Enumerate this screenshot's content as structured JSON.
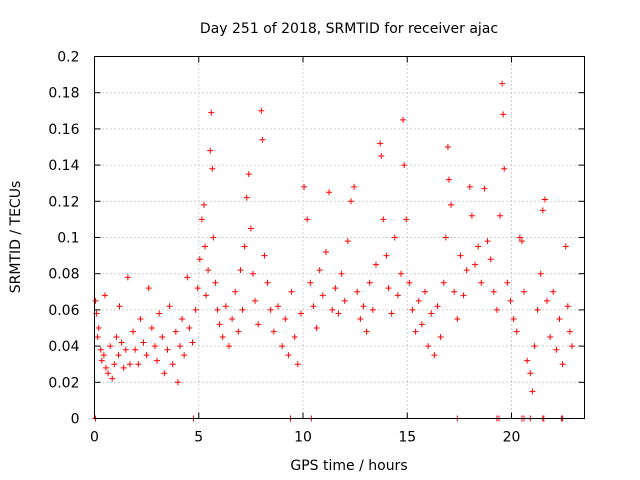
{
  "chart_data": {
    "type": "scatter",
    "title": "Day 251 of 2018, SRMTID for receiver ajac",
    "xlabel": "GPS time / hours",
    "ylabel": "SRMTID / TECUs",
    "xlim": [
      0,
      23.5
    ],
    "ylim": [
      0,
      0.2
    ],
    "x_ticks": [
      0,
      5,
      10,
      15,
      20
    ],
    "y_ticks": [
      0,
      0.02,
      0.04,
      0.06,
      0.08,
      0.1,
      0.12,
      0.14,
      0.16,
      0.18,
      0.2
    ],
    "x_tick_labels": [
      "0",
      "5",
      "10",
      "15",
      "20"
    ],
    "y_tick_labels": [
      "0",
      "0.02",
      "0.04",
      "0.06",
      "0.08",
      "0.1",
      "0.12",
      "0.14",
      "0.16",
      "0.18",
      "0.2"
    ],
    "grid": true,
    "legend": "none",
    "marker": "plus",
    "color": "#ff0000",
    "series": [
      {
        "points": [
          [
            0.05,
            0.065
          ],
          [
            0.1,
            0.058
          ],
          [
            0.15,
            0.045
          ],
          [
            0.2,
            0.05
          ],
          [
            0.3,
            0.038
          ],
          [
            0.35,
            0.032
          ],
          [
            0.45,
            0.035
          ],
          [
            0.5,
            0.068
          ],
          [
            0.55,
            0.028
          ],
          [
            0.65,
            0.025
          ],
          [
            0.75,
            0.04
          ],
          [
            0.85,
            0.022
          ],
          [
            0.95,
            0.03
          ],
          [
            1.05,
            0.045
          ],
          [
            1.15,
            0.035
          ],
          [
            1.2,
            0.062
          ],
          [
            1.3,
            0.042
          ],
          [
            1.4,
            0.028
          ],
          [
            1.5,
            0.038
          ],
          [
            1.6,
            0.078
          ],
          [
            1.7,
            0.03
          ],
          [
            1.85,
            0.048
          ],
          [
            1.95,
            0.038
          ],
          [
            2.1,
            0.03
          ],
          [
            2.2,
            0.055
          ],
          [
            2.35,
            0.042
          ],
          [
            2.5,
            0.035
          ],
          [
            2.6,
            0.072
          ],
          [
            2.75,
            0.05
          ],
          [
            2.9,
            0.04
          ],
          [
            3.0,
            0.032
          ],
          [
            3.1,
            0.058
          ],
          [
            3.25,
            0.045
          ],
          [
            3.35,
            0.025
          ],
          [
            3.5,
            0.038
          ],
          [
            3.6,
            0.062
          ],
          [
            3.75,
            0.03
          ],
          [
            3.9,
            0.048
          ],
          [
            4.0,
            0.02
          ],
          [
            4.1,
            0.04
          ],
          [
            4.2,
            0.055
          ],
          [
            4.3,
            0.035
          ],
          [
            4.45,
            0.078
          ],
          [
            4.55,
            0.05
          ],
          [
            4.7,
            0.042
          ],
          [
            4.85,
            0.06
          ],
          [
            4.95,
            0.072
          ],
          [
            5.05,
            0.088
          ],
          [
            5.15,
            0.11
          ],
          [
            5.25,
            0.118
          ],
          [
            5.3,
            0.095
          ],
          [
            5.35,
            0.068
          ],
          [
            5.45,
            0.082
          ],
          [
            5.55,
            0.148
          ],
          [
            5.6,
            0.169
          ],
          [
            5.65,
            0.138
          ],
          [
            5.7,
            0.1
          ],
          [
            5.8,
            0.075
          ],
          [
            5.9,
            0.06
          ],
          [
            6.0,
            0.052
          ],
          [
            6.15,
            0.045
          ],
          [
            6.3,
            0.062
          ],
          [
            6.45,
            0.04
          ],
          [
            6.6,
            0.055
          ],
          [
            6.75,
            0.07
          ],
          [
            6.9,
            0.048
          ],
          [
            7.0,
            0.082
          ],
          [
            7.1,
            0.06
          ],
          [
            7.2,
            0.095
          ],
          [
            7.3,
            0.122
          ],
          [
            7.4,
            0.135
          ],
          [
            7.5,
            0.105
          ],
          [
            7.6,
            0.08
          ],
          [
            7.7,
            0.065
          ],
          [
            7.85,
            0.052
          ],
          [
            8.0,
            0.17
          ],
          [
            8.05,
            0.154
          ],
          [
            8.15,
            0.09
          ],
          [
            8.3,
            0.075
          ],
          [
            8.45,
            0.06
          ],
          [
            8.6,
            0.048
          ],
          [
            8.8,
            0.062
          ],
          [
            9.0,
            0.04
          ],
          [
            9.15,
            0.055
          ],
          [
            9.3,
            0.035
          ],
          [
            9.45,
            0.07
          ],
          [
            9.6,
            0.045
          ],
          [
            9.75,
            0.03
          ],
          [
            9.9,
            0.058
          ],
          [
            10.05,
            0.128
          ],
          [
            10.2,
            0.11
          ],
          [
            10.35,
            0.075
          ],
          [
            10.5,
            0.062
          ],
          [
            10.65,
            0.05
          ],
          [
            10.8,
            0.082
          ],
          [
            10.95,
            0.068
          ],
          [
            11.1,
            0.092
          ],
          [
            11.25,
            0.125
          ],
          [
            11.4,
            0.06
          ],
          [
            11.55,
            0.072
          ],
          [
            11.7,
            0.058
          ],
          [
            11.85,
            0.08
          ],
          [
            12.0,
            0.065
          ],
          [
            12.15,
            0.098
          ],
          [
            12.3,
            0.12
          ],
          [
            12.45,
            0.128
          ],
          [
            12.6,
            0.07
          ],
          [
            12.75,
            0.055
          ],
          [
            12.9,
            0.062
          ],
          [
            13.05,
            0.048
          ],
          [
            13.2,
            0.075
          ],
          [
            13.35,
            0.06
          ],
          [
            13.5,
            0.085
          ],
          [
            13.7,
            0.152
          ],
          [
            13.75,
            0.145
          ],
          [
            13.85,
            0.11
          ],
          [
            14.0,
            0.09
          ],
          [
            14.1,
            0.072
          ],
          [
            14.25,
            0.058
          ],
          [
            14.4,
            0.1
          ],
          [
            14.55,
            0.068
          ],
          [
            14.7,
            0.08
          ],
          [
            14.8,
            0.165
          ],
          [
            14.85,
            0.14
          ],
          [
            14.95,
            0.11
          ],
          [
            15.1,
            0.075
          ],
          [
            15.25,
            0.06
          ],
          [
            15.4,
            0.048
          ],
          [
            15.55,
            0.065
          ],
          [
            15.7,
            0.052
          ],
          [
            15.85,
            0.07
          ],
          [
            16.0,
            0.04
          ],
          [
            16.15,
            0.058
          ],
          [
            16.3,
            0.035
          ],
          [
            16.45,
            0.062
          ],
          [
            16.6,
            0.045
          ],
          [
            16.75,
            0.075
          ],
          [
            16.85,
            0.1
          ],
          [
            16.95,
            0.15
          ],
          [
            17.0,
            0.132
          ],
          [
            17.1,
            0.118
          ],
          [
            17.25,
            0.07
          ],
          [
            17.4,
            0.055
          ],
          [
            17.55,
            0.09
          ],
          [
            17.7,
            0.068
          ],
          [
            17.85,
            0.082
          ],
          [
            18.0,
            0.128
          ],
          [
            18.1,
            0.112
          ],
          [
            18.25,
            0.085
          ],
          [
            18.4,
            0.095
          ],
          [
            18.55,
            0.075
          ],
          [
            18.7,
            0.127
          ],
          [
            18.85,
            0.098
          ],
          [
            19.0,
            0.088
          ],
          [
            19.15,
            0.07
          ],
          [
            19.3,
            0.06
          ],
          [
            19.45,
            0.112
          ],
          [
            19.55,
            0.185
          ],
          [
            19.6,
            0.168
          ],
          [
            19.65,
            0.138
          ],
          [
            19.8,
            0.075
          ],
          [
            19.95,
            0.065
          ],
          [
            20.1,
            0.055
          ],
          [
            20.25,
            0.048
          ],
          [
            20.4,
            0.1
          ],
          [
            20.5,
            0.098
          ],
          [
            20.6,
            0.07
          ],
          [
            20.75,
            0.032
          ],
          [
            20.9,
            0.025
          ],
          [
            21.0,
            0.015
          ],
          [
            21.1,
            0.04
          ],
          [
            21.25,
            0.06
          ],
          [
            21.4,
            0.08
          ],
          [
            21.5,
            0.115
          ],
          [
            21.6,
            0.121
          ],
          [
            21.7,
            0.065
          ],
          [
            21.85,
            0.045
          ],
          [
            22.0,
            0.07
          ],
          [
            22.15,
            0.038
          ],
          [
            22.3,
            0.055
          ],
          [
            22.45,
            0.03
          ],
          [
            22.6,
            0.095
          ],
          [
            22.7,
            0.062
          ],
          [
            22.8,
            0.048
          ],
          [
            22.9,
            0.04
          ],
          [
            0.05,
            0.0
          ],
          [
            4.75,
            0.0
          ],
          [
            9.4,
            0.0
          ],
          [
            10.4,
            0.0
          ],
          [
            17.4,
            0.0
          ],
          [
            19.3,
            0.0
          ],
          [
            19.4,
            0.0
          ],
          [
            20.5,
            0.0
          ],
          [
            20.6,
            0.0
          ],
          [
            20.9,
            0.0
          ],
          [
            21.5,
            0.0
          ],
          [
            21.55,
            0.0
          ],
          [
            22.4,
            0.0
          ],
          [
            22.45,
            0.0
          ]
        ]
      }
    ]
  }
}
